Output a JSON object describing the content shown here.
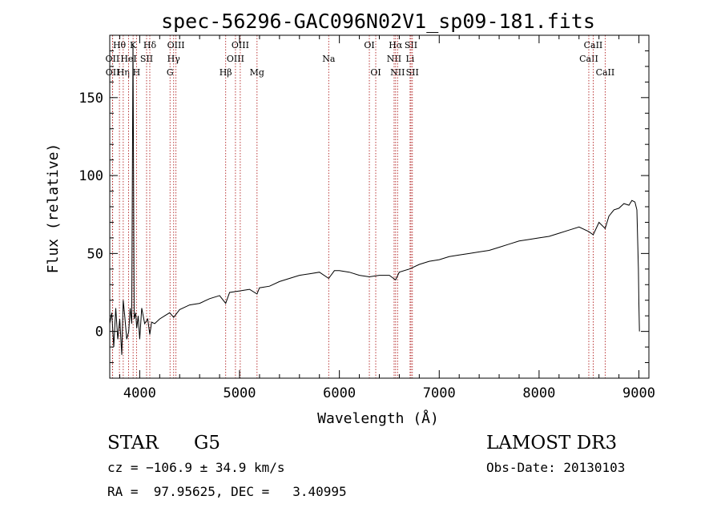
{
  "chart_data": {
    "type": "line",
    "title": "spec-56296-GAC096N02V1_sp09-181.fits",
    "xlabel": "Wavelength (Å)",
    "ylabel": "Flux (relative)",
    "xlim": [
      3700,
      9100
    ],
    "ylim": [
      -30,
      190
    ],
    "x_ticks": [
      4000,
      5000,
      6000,
      7000,
      8000,
      9000
    ],
    "y_ticks": [
      0,
      50,
      100,
      150
    ],
    "grid": false,
    "series": [
      {
        "name": "spectrum",
        "x": [
          3700,
          3720,
          3740,
          3760,
          3780,
          3800,
          3820,
          3835,
          3850,
          3870,
          3890,
          3905,
          3920,
          3933,
          3945,
          3960,
          3970,
          3985,
          4000,
          4020,
          4050,
          4080,
          4101,
          4120,
          4150,
          4200,
          4250,
          4300,
          4340,
          4400,
          4500,
          4600,
          4700,
          4800,
          4861,
          4900,
          5000,
          5100,
          5175,
          5200,
          5300,
          5400,
          5500,
          5600,
          5700,
          5800,
          5893,
          5950,
          6000,
          6100,
          6200,
          6300,
          6400,
          6500,
          6563,
          6600,
          6700,
          6800,
          6900,
          7000,
          7100,
          7200,
          7300,
          7400,
          7500,
          7600,
          7700,
          7800,
          7900,
          8000,
          8100,
          8200,
          8300,
          8400,
          8498,
          8542,
          8600,
          8662,
          8700,
          8750,
          8800,
          8850,
          8900,
          8930,
          8960,
          8980,
          8995,
          9000,
          9005
        ],
        "y": [
          5,
          12,
          -10,
          15,
          -5,
          8,
          -15,
          20,
          10,
          -5,
          0,
          15,
          5,
          185,
          8,
          12,
          2,
          10,
          -5,
          15,
          5,
          8,
          -2,
          6,
          5,
          8,
          10,
          12,
          9,
          14,
          17,
          18,
          21,
          23,
          18,
          25,
          26,
          27,
          24,
          28,
          29,
          32,
          34,
          36,
          37,
          38,
          34,
          39,
          39,
          38,
          36,
          35,
          36,
          36,
          33,
          38,
          40,
          43,
          45,
          46,
          48,
          49,
          50,
          51,
          52,
          54,
          56,
          58,
          59,
          60,
          61,
          63,
          65,
          67,
          64,
          62,
          70,
          66,
          74,
          78,
          79,
          82,
          81,
          84,
          83,
          78,
          40,
          18,
          0
        ]
      }
    ],
    "lines": [
      {
        "label": "Hθ",
        "x": 3797,
        "row": 0
      },
      {
        "label": "OII",
        "x": 3727,
        "row": 1
      },
      {
        "label": "OII",
        "x": 3729,
        "row": 2
      },
      {
        "label": "Hη",
        "x": 3835,
        "row": 2
      },
      {
        "label": "HeI",
        "x": 3889,
        "row": 1
      },
      {
        "label": "K",
        "x": 3934,
        "row": 0
      },
      {
        "label": "H",
        "x": 3968,
        "row": 2
      },
      {
        "label": "SII",
        "x": 4069,
        "row": 1
      },
      {
        "label": "Hδ",
        "x": 4101,
        "row": 0
      },
      {
        "label": "Hγ",
        "x": 4340,
        "row": 1
      },
      {
        "label": "G",
        "x": 4304,
        "row": 2
      },
      {
        "label": "OIII",
        "x": 4363,
        "row": 0
      },
      {
        "label": "Hβ",
        "x": 4861,
        "row": 2
      },
      {
        "label": "OIII",
        "x": 4959,
        "row": 1
      },
      {
        "label": "OIII",
        "x": 5007,
        "row": 0
      },
      {
        "label": "Mg",
        "x": 5175,
        "row": 2
      },
      {
        "label": "Na",
        "x": 5893,
        "row": 1
      },
      {
        "label": "OI",
        "x": 6300,
        "row": 0
      },
      {
        "label": "OI",
        "x": 6364,
        "row": 2
      },
      {
        "label": "NII",
        "x": 6548,
        "row": 1
      },
      {
        "label": "Hα",
        "x": 6563,
        "row": 0
      },
      {
        "label": "NII",
        "x": 6583,
        "row": 2
      },
      {
        "label": "Li",
        "x": 6708,
        "row": 1
      },
      {
        "label": "SII",
        "x": 6717,
        "row": 0
      },
      {
        "label": "SII",
        "x": 6731,
        "row": 2
      },
      {
        "label": "CaII",
        "x": 8498,
        "row": 1
      },
      {
        "label": "CaII",
        "x": 8542,
        "row": 0
      },
      {
        "label": "CaII",
        "x": 8662,
        "row": 2
      }
    ]
  },
  "info": {
    "class": "STAR",
    "subclass": "G5",
    "survey": "LAMOST DR3",
    "cz": "cz = −106.9 ± 34.9 km/s",
    "radec": "RA =  97.95625, DEC =   3.40995",
    "obs_date": "Obs-Date: 20130103"
  },
  "colors": {
    "axes": "#000000",
    "spectrum": "#000000",
    "line_markers": "#b22222"
  }
}
